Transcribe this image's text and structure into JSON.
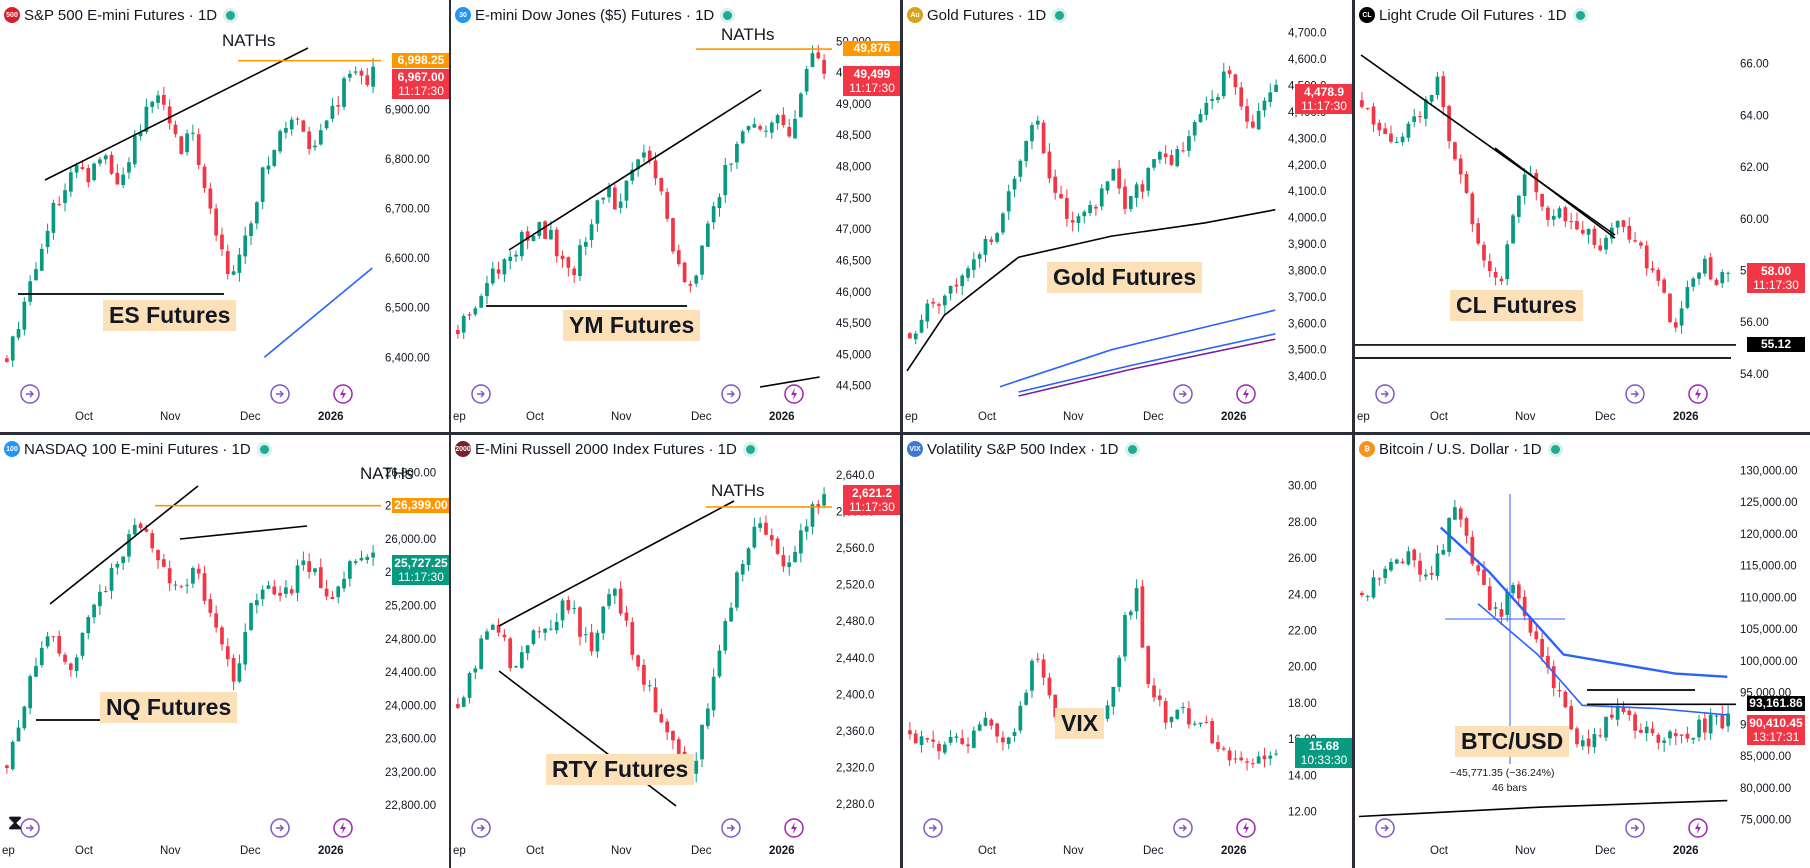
{
  "colors": {
    "up": "#089981",
    "down": "#f23645",
    "accent": "#ff9800",
    "ma_blue": "#2962ff",
    "ma_purple": "#7b1fa2",
    "black": "#000000"
  },
  "chart_data": [
    {
      "type": "candlestick",
      "title": "S&P 500 E-mini Futures · 1D",
      "symbol_badge": "500",
      "badge_color": "#d81e2c",
      "ylim": [
        6330,
        7060
      ],
      "yticks": [
        "6,400.00",
        "6,500.00",
        "6,600.00",
        "6,700.00",
        "6,800.00",
        "6,900.00"
      ],
      "xticks": [
        "Oct",
        "Nov",
        "Dec",
        "2026"
      ],
      "annotation": "ES Futures",
      "nath_label": "NATHs",
      "levels": [
        {
          "value": 6998.25,
          "label": "6,998.25",
          "color": "#ff9800"
        }
      ],
      "last": {
        "price": "6,967.00",
        "time": "11:17:30",
        "value": 6967,
        "color": "#f23645"
      },
      "seed": 11,
      "path": [
        6400,
        6460,
        6540,
        6600,
        6660,
        6720,
        6755,
        6790,
        6770,
        6820,
        6790,
        6760,
        6800,
        6860,
        6900,
        6940,
        6870,
        6820,
        6860,
        6780,
        6700,
        6620,
        6560,
        6600,
        6680,
        6760,
        6820,
        6860,
        6880,
        6850,
        6800,
        6860,
        6900,
        6940,
        6985,
        6960,
        6975
      ]
    },
    {
      "type": "candlestick",
      "title": "E-mini Dow Jones ($5) Futures · 1D",
      "symbol_badge": "30",
      "badge_color": "#2196f3",
      "ylim": [
        44400,
        50180
      ],
      "yticks": [
        "44,500",
        "45,000",
        "45,500",
        "46,000",
        "46,500",
        "47,000",
        "47,500",
        "48,000",
        "48,500",
        "49,000",
        "49,500",
        "50,000"
      ],
      "xticks": [
        "ep",
        "Oct",
        "Nov",
        "Dec",
        "2026"
      ],
      "annotation": "YM Futures",
      "nath_label": "NATHs",
      "levels": [
        {
          "value": 49876,
          "label": "49,876",
          "color": "#ff9800"
        }
      ],
      "last": {
        "price": "49,499",
        "time": "11:17:30",
        "value": 49499,
        "color": "#f23645"
      },
      "seed": 23,
      "path": [
        45400,
        45700,
        46000,
        46300,
        46500,
        46700,
        46900,
        47100,
        46900,
        46600,
        46200,
        46800,
        47400,
        47700,
        47300,
        47900,
        48200,
        48000,
        47400,
        46600,
        45900,
        46400,
        47100,
        47700,
        48200,
        48600,
        48800,
        48600,
        48900,
        48500,
        49200,
        49700,
        49500
      ]
    },
    {
      "type": "candlestick",
      "title": "Gold Futures · 1D",
      "symbol_badge": "Au",
      "badge_color": "#d8a31b",
      "ylim": [
        3340,
        4710
      ],
      "yticks": [
        "3,400.0",
        "3,500.0",
        "3,600.0",
        "3,700.0",
        "3,800.0",
        "3,900.0",
        "4,000.0",
        "4,100.0",
        "4,200.0",
        "4,300.0",
        "4,400.0",
        "4,500.0",
        "4,600.0",
        "4,700.0"
      ],
      "xticks": [
        "ep",
        "Oct",
        "Nov",
        "Dec",
        "2026"
      ],
      "annotation": "Gold Futures",
      "levels": [],
      "last": {
        "price": "4,478.9",
        "time": "11:17:30",
        "value": 4479,
        "color": "#f23645"
      },
      "seed": 37,
      "path": [
        3560,
        3620,
        3680,
        3700,
        3760,
        3800,
        3850,
        3900,
        3960,
        4050,
        4200,
        4350,
        4360,
        4150,
        4050,
        3980,
        4000,
        4050,
        4100,
        4180,
        4060,
        4100,
        4150,
        4230,
        4200,
        4260,
        4320,
        4380,
        4440,
        4520,
        4550,
        4400,
        4350,
        4470,
        4480
      ]
    },
    {
      "type": "candlestick",
      "title": "Light Crude Oil Futures · 1D",
      "symbol_badge": "CL",
      "badge_color": "#000000",
      "ylim": [
        53.3,
        67.3
      ],
      "yticks": [
        "54.00",
        "56.00",
        "58.00",
        "60.00",
        "62.00",
        "64.00",
        "66.00"
      ],
      "xticks": [
        "ep",
        "Oct",
        "Nov",
        "Dec",
        "2026"
      ],
      "annotation": "CL Futures",
      "levels": [
        {
          "value": 55.12,
          "label": "55.12",
          "color": "#000000"
        }
      ],
      "last": {
        "price": "58.00",
        "time": "11:17:30",
        "value": 58.0,
        "color": "#f23645"
      },
      "seed": 41,
      "path": [
        64.5,
        63.8,
        63.0,
        62.6,
        63.2,
        63.9,
        64.4,
        65.2,
        63.0,
        61.6,
        60.5,
        59.0,
        58.2,
        57.3,
        60.2,
        61.8,
        61.2,
        60.4,
        60.0,
        60.2,
        59.8,
        59.3,
        59.0,
        59.6,
        60.1,
        59.2,
        58.7,
        58.0,
        57.1,
        55.6,
        57.0,
        58.0,
        58.2,
        57.5,
        58.0
      ]
    },
    {
      "type": "candlestick",
      "title": "NASDAQ 100 E-mini Futures · 1D",
      "symbol_badge": "100",
      "badge_color": "#2196f3",
      "ylim": [
        22550,
        26900
      ],
      "yticks": [
        "22,800.00",
        "23,200.00",
        "23,600.00",
        "24,000.00",
        "24,400.00",
        "24,800.00",
        "25,200.00",
        "25,600.00",
        "26,000.00",
        "26,400.00",
        "26,800.00"
      ],
      "xticks": [
        "ep",
        "Oct",
        "Nov",
        "Dec",
        "2026"
      ],
      "annotation": "NQ Futures",
      "nath_label": "NATHs",
      "levels": [
        {
          "value": 26399,
          "label": "26,399.00",
          "color": "#ff9800"
        }
      ],
      "last": {
        "price": "25,727.25",
        "time": "11:17:30",
        "value": 25727,
        "color": "#089981"
      },
      "seed": 53,
      "path": [
        23300,
        23700,
        24200,
        24700,
        24900,
        24700,
        24500,
        24850,
        25200,
        25400,
        25600,
        25900,
        26250,
        26100,
        25700,
        25500,
        25300,
        25600,
        25500,
        25100,
        24700,
        24300,
        24800,
        25300,
        25500,
        25400,
        25300,
        25600,
        25700,
        25500,
        25300,
        25400,
        25700,
        25750,
        25727
      ]
    },
    {
      "type": "candlestick",
      "title": "E-Mini Russell 2000 Index Futures · 1D",
      "symbol_badge": "2000",
      "badge_color": "#7a1f2b",
      "ylim": [
        2256,
        2652
      ],
      "yticks": [
        "2,280.0",
        "2,320.0",
        "2,360.0",
        "2,400.0",
        "2,440.0",
        "2,480.0",
        "2,520.0",
        "2,560.0",
        "2,600.0",
        "2,640.0"
      ],
      "xticks": [
        "ep",
        "Oct",
        "Nov",
        "Dec",
        "2026"
      ],
      "annotation": "RTY Futures",
      "nath_label": "NATHs",
      "levels": [
        {
          "value": 2605.0,
          "label": "2,605.0",
          "color": "#ff9800"
        }
      ],
      "last": {
        "price": "2,621.2",
        "time": "11:17:30",
        "value": 2621,
        "color": "#f23645"
      },
      "seed": 67,
      "path": [
        2390,
        2420,
        2450,
        2470,
        2460,
        2430,
        2450,
        2480,
        2470,
        2490,
        2500,
        2470,
        2450,
        2490,
        2510,
        2480,
        2440,
        2410,
        2380,
        2360,
        2330,
        2310,
        2360,
        2420,
        2470,
        2520,
        2560,
        2590,
        2570,
        2550,
        2540,
        2580,
        2600,
        2621
      ]
    },
    {
      "type": "candlestick",
      "title": "Volatility S&P 500 Index · 1D",
      "symbol_badge": "VIX",
      "badge_color": "#ffffff",
      "ylim": [
        11.2,
        31.2
      ],
      "yticks": [
        "12.00",
        "14.00",
        "16.00",
        "18.00",
        "20.00",
        "22.00",
        "24.00",
        "26.00",
        "28.00",
        "30.00"
      ],
      "xticks": [
        "Oct",
        "Nov",
        "Dec",
        "2026"
      ],
      "annotation": "VIX",
      "levels": [],
      "last": {
        "price": "15.68",
        "time": "10:33:30",
        "value": 15.68,
        "color": "#089981"
      },
      "seed": 79,
      "path": [
        16.5,
        16.0,
        15.5,
        15.8,
        16.3,
        15.9,
        16.2,
        16.8,
        16.4,
        16.1,
        17.0,
        19.5,
        21.0,
        18.0,
        17.0,
        16.3,
        17.3,
        16.8,
        17.6,
        19.0,
        22.5,
        24.5,
        19.0,
        18.0,
        17.0,
        17.6,
        17.2,
        16.8,
        16.3,
        15.6,
        14.8,
        14.2,
        14.6,
        15.2,
        15.68
      ]
    },
    {
      "type": "candlestick",
      "title": "Bitcoin / U.S. Dollar · 1D",
      "symbol_badge": "₿",
      "badge_color": "#f7931a",
      "ylim": [
        74000,
        131000
      ],
      "yticks": [
        "75,000.00",
        "80,000.00",
        "85,000.00",
        "90,000.00",
        "95,000.00",
        "100,000.00",
        "105,000.00",
        "110,000.00",
        "115,000.00",
        "120,000.00",
        "125,000.00",
        "130,000.00"
      ],
      "xticks": [
        "Oct",
        "Nov",
        "Dec",
        "2026"
      ],
      "annotation": "BTC/USD",
      "measure_text": "−45,771.35 (−36.24%)",
      "measure_bars": "46 bars",
      "levels": [
        {
          "value": 93161.86,
          "label": "93,161.86",
          "color": "#000000"
        }
      ],
      "last": {
        "price": "90,410.45",
        "time": "13:17:31",
        "value": 90410,
        "color": "#f23645"
      },
      "seed": 97,
      "path": [
        111000,
        112000,
        114000,
        116000,
        117000,
        115000,
        113000,
        116000,
        121000,
        124000,
        118000,
        112000,
        109000,
        108000,
        111000,
        108000,
        104000,
        101000,
        96000,
        91000,
        88000,
        86000,
        88000,
        91000,
        92000,
        90000,
        89000,
        88000,
        87000,
        88000,
        88500,
        89500,
        90000,
        91000,
        90410
      ]
    }
  ]
}
